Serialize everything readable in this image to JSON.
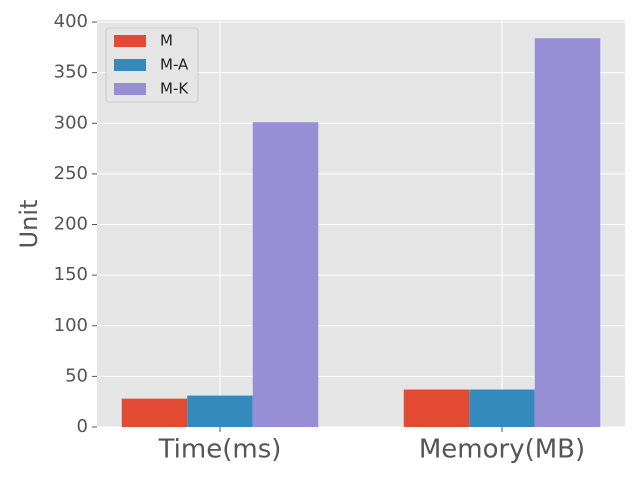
{
  "chart_data": {
    "type": "bar",
    "y_label": "Unit",
    "categories": [
      "Time(ms)",
      "Memory(MB)"
    ],
    "series": [
      {
        "name": "M",
        "color": "#E24A33",
        "values": [
          28,
          37
        ]
      },
      {
        "name": "M-A",
        "color": "#348ABD",
        "values": [
          31,
          37
        ]
      },
      {
        "name": "M-K",
        "color": "#988ED5",
        "values": [
          301,
          384
        ]
      }
    ],
    "ylim": [
      0,
      402
    ],
    "yticks": [
      0,
      50,
      100,
      150,
      200,
      250,
      300,
      350,
      400
    ],
    "grid": true,
    "legend": "upper-left"
  }
}
